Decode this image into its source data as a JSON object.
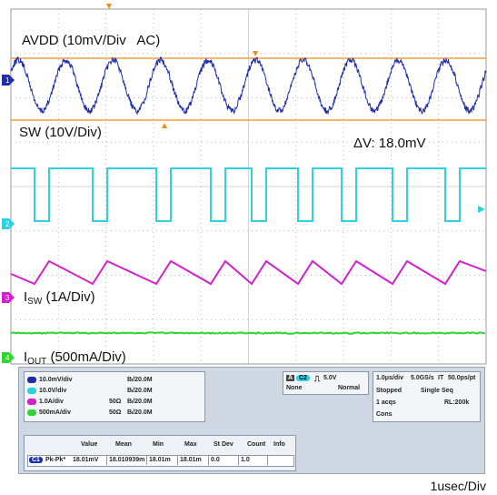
{
  "labels": {
    "avdd": "AVDD (10mV/Div   AC)",
    "sw": "SW (10V/Div)",
    "delta_v": "ΔV: 18.0mV",
    "isw_main": "I",
    "isw_sub": "SW",
    "isw_rest": " (1A/Div)",
    "iout_main": "I",
    "iout_sub": "OUT",
    "iout_rest": " (500mA/Div)",
    "timebase": "1usec/Div"
  },
  "colors": {
    "ch1": "#1f2fa8",
    "ch2": "#2fd0df",
    "ch3": "#d21fcf",
    "ch4": "#2fd62f",
    "cursor": "#f08a18",
    "grid": "#b8b8b8"
  },
  "markers": {
    "ch1": "1",
    "ch2": "2",
    "ch3": "3",
    "ch4": "4"
  },
  "channels": [
    {
      "badge": "C1",
      "scale": "10.0mV/div",
      "coupling": "",
      "bw": "Bₗ/20.0M",
      "color": "#1f2fa8"
    },
    {
      "badge": "C2",
      "scale": "10.0V/div",
      "coupling": "",
      "bw": "Bₗ/20.0M",
      "color": "#2fd0df"
    },
    {
      "badge": "C3",
      "scale": "1.0A/div",
      "coupling": "50Ω",
      "bw": "Bₗ/20.0M",
      "color": "#d21fcf"
    },
    {
      "badge": "C4",
      "scale": "500mA/div",
      "coupling": "50Ω",
      "bw": "Bₗ/20.0M",
      "color": "#2fd62f"
    }
  ],
  "trigger": {
    "mode_badge": "A",
    "source": "C2",
    "level": "5.0V",
    "coupling": "None",
    "type": "Normal"
  },
  "acquisition": {
    "timebase": "1.0μs/div",
    "rate": "5.0GS/s",
    "it": "IT",
    "ps": "50.0ps/pt",
    "state": "Stopped",
    "seq": "Single Seq",
    "acqs": "1 acqs",
    "rl": "RL:200k",
    "cons": "Cons"
  },
  "measurements": {
    "headers": [
      "Value",
      "Mean",
      "Min",
      "Max",
      "St Dev",
      "Count",
      "Info"
    ],
    "row": {
      "badge": "C1",
      "name": "Pk-Pk*",
      "values": [
        "18.01mV",
        "18.010939m",
        "18.01m",
        "18.01m",
        "0.0",
        "1.0",
        ""
      ]
    }
  }
}
